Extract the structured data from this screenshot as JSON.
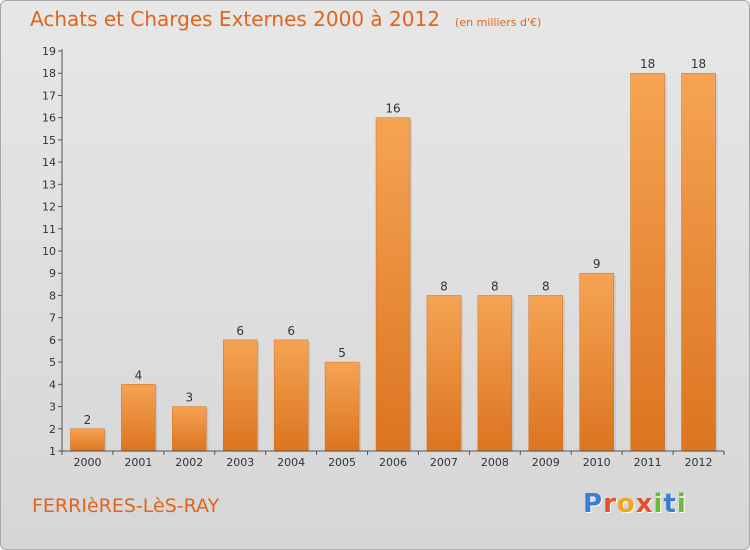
{
  "chart_data": {
    "type": "bar",
    "title": "Achats et Charges Externes 2000 à 2012",
    "subtitle": "(en milliers d'€)",
    "xlabel": "",
    "ylabel": "",
    "categories": [
      "2000",
      "2001",
      "2002",
      "2003",
      "2004",
      "2005",
      "2006",
      "2007",
      "2008",
      "2009",
      "2010",
      "2011",
      "2012"
    ],
    "values": [
      2,
      4,
      3,
      6,
      6,
      5,
      16,
      8,
      8,
      8,
      9,
      18,
      18
    ],
    "ylim": [
      1,
      19
    ],
    "yticks": [
      "1",
      "2",
      "3",
      "4",
      "5",
      "6",
      "7",
      "8",
      "9",
      "10",
      "11",
      "12",
      "13",
      "14",
      "15",
      "16",
      "17",
      "18",
      "19"
    ],
    "grid": false,
    "legend": "none",
    "bar_color": "#f0923c"
  },
  "footer": {
    "place_name": "FERRIèRES-LèS-RAY",
    "logo_text": "Proxiti",
    "logo_letters": [
      {
        "char": "P",
        "color": "#3a7fd0"
      },
      {
        "char": "r",
        "color": "#e8502a"
      },
      {
        "char": "o",
        "color": "#f2a61b"
      },
      {
        "char": "x",
        "color": "#e8502a"
      },
      {
        "char": "i",
        "color": "#6cba3a"
      },
      {
        "char": "t",
        "color": "#3a7fd0"
      },
      {
        "char": "i",
        "color": "#6cba3a"
      }
    ]
  }
}
